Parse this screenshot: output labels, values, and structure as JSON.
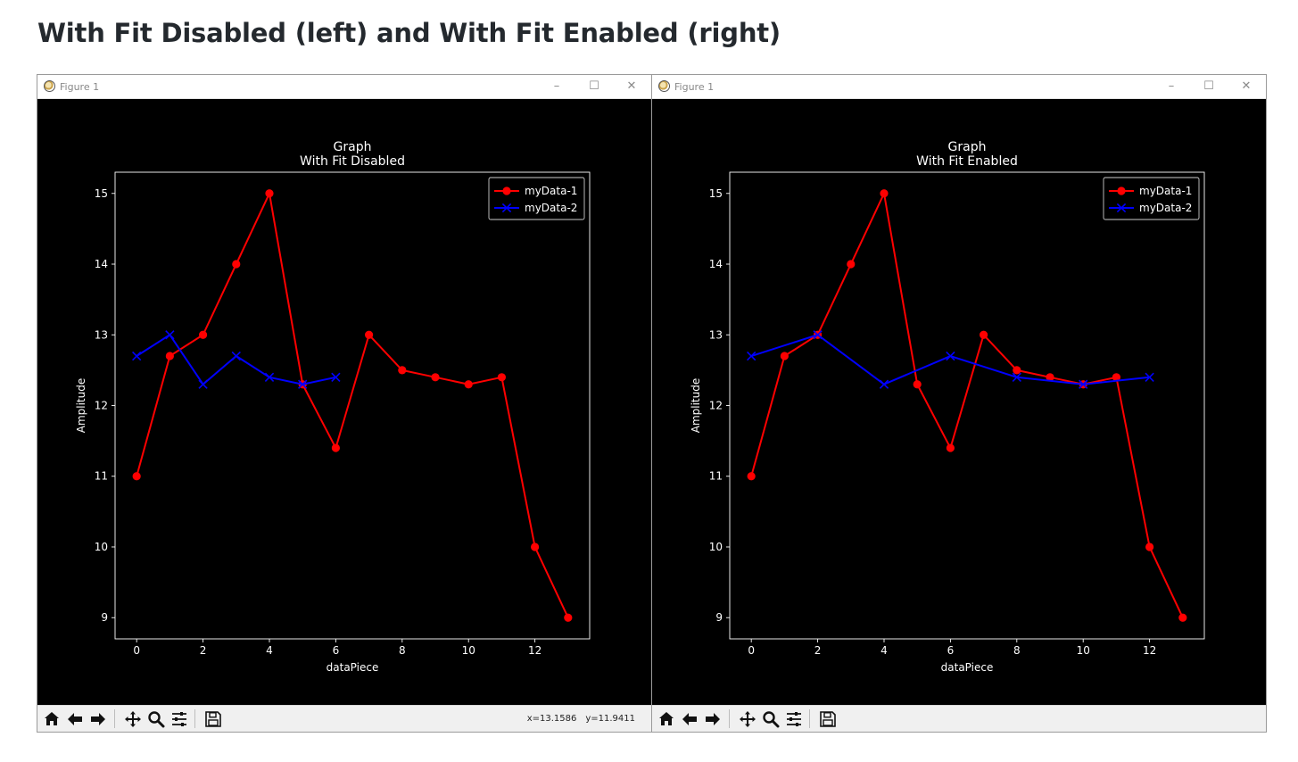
{
  "page": {
    "heading": "With Fit Disabled (left) and With Fit Enabled (right)"
  },
  "windows": [
    {
      "title": "Figure 1",
      "controls": {
        "minimize": "–",
        "maximize": "☐",
        "close": "✕"
      },
      "coords": {
        "x": "x=13.1586",
        "y": "y=11.9411"
      },
      "toolbar": [
        "home",
        "back",
        "forward",
        "pan",
        "zoom",
        "configure",
        "save"
      ]
    },
    {
      "title": "Figure 1",
      "controls": {
        "minimize": "–",
        "maximize": "☐",
        "close": "✕"
      },
      "coords": {
        "x": "",
        "y": ""
      },
      "toolbar": [
        "home",
        "back",
        "forward",
        "pan",
        "zoom",
        "configure",
        "save"
      ]
    }
  ],
  "chart_data": [
    {
      "type": "line",
      "title": "Graph\nWith Fit Disabled",
      "title_lines": [
        "Graph",
        "With Fit Disabled"
      ],
      "xlabel": "dataPiece",
      "ylabel": "Amplitude",
      "xlim": [
        -0.65,
        13.65
      ],
      "ylim": [
        8.7,
        15.3
      ],
      "xticks": [
        0,
        2,
        4,
        6,
        8,
        10,
        12
      ],
      "yticks": [
        9,
        10,
        11,
        12,
        13,
        14,
        15
      ],
      "grid": false,
      "legend_position": "upper right",
      "background": "#000000",
      "foreground": "#ffffff",
      "series": [
        {
          "name": "myData-1",
          "color": "#ff0000",
          "marker": "circle",
          "x": [
            0,
            1,
            2,
            3,
            4,
            5,
            6,
            7,
            8,
            9,
            10,
            11,
            12,
            13
          ],
          "y": [
            11,
            12.7,
            13,
            14,
            15,
            12.3,
            11.4,
            13,
            12.5,
            12.4,
            12.3,
            12.4,
            10,
            9
          ]
        },
        {
          "name": "myData-2",
          "color": "#0000ff",
          "marker": "x",
          "x": [
            0,
            1,
            2,
            3,
            4,
            5,
            6
          ],
          "y": [
            12.7,
            13,
            12.3,
            12.7,
            12.4,
            12.3,
            12.4
          ]
        }
      ]
    },
    {
      "type": "line",
      "title": "Graph\nWith Fit Enabled",
      "title_lines": [
        "Graph",
        "With Fit Enabled"
      ],
      "xlabel": "dataPiece",
      "ylabel": "Amplitude",
      "xlim": [
        -0.65,
        13.65
      ],
      "ylim": [
        8.7,
        15.3
      ],
      "xticks": [
        0,
        2,
        4,
        6,
        8,
        10,
        12
      ],
      "yticks": [
        9,
        10,
        11,
        12,
        13,
        14,
        15
      ],
      "grid": false,
      "legend_position": "upper right",
      "background": "#000000",
      "foreground": "#ffffff",
      "series": [
        {
          "name": "myData-1",
          "color": "#ff0000",
          "marker": "circle",
          "x": [
            0,
            1,
            2,
            3,
            4,
            5,
            6,
            7,
            8,
            9,
            10,
            11,
            12,
            13
          ],
          "y": [
            11,
            12.7,
            13,
            14,
            15,
            12.3,
            11.4,
            13,
            12.5,
            12.4,
            12.3,
            12.4,
            10,
            9
          ]
        },
        {
          "name": "myData-2",
          "color": "#0000ff",
          "marker": "x",
          "x": [
            0,
            2,
            4,
            6,
            8,
            10,
            12
          ],
          "y": [
            12.7,
            13,
            12.3,
            12.7,
            12.4,
            12.3,
            12.4
          ]
        }
      ]
    }
  ]
}
